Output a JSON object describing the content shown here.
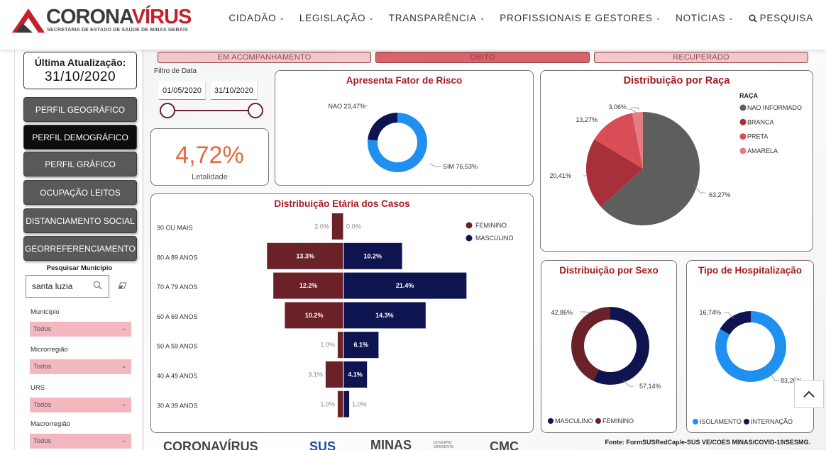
{
  "header": {
    "logo_part1": "CORONA",
    "logo_part2": "VÍRUS",
    "logo_sub": "SECRETARIA DE ESTADO DE SAÚDE DE MINAS GERAIS",
    "nav": [
      "CIDADÃO",
      "LEGISLAÇÃO",
      "TRANSPARÊNCIA",
      "PROFISSIONAIS E GESTORES",
      "NOTÍCIAS"
    ],
    "search_label": "PESQUISA"
  },
  "sidebar": {
    "update_title": "Última Atualização:",
    "update_date": "31/10/2020",
    "buttons": [
      "PERFIL GEOGRÁFICO",
      "PERFIL DEMOGRÁFICO",
      "PERFIL GRÁFICO",
      "OCUPAÇÃO LEITOS",
      "DISTANCIAMENTO SOCIAL",
      "GEORREFERENCIAMENTO"
    ],
    "active_button": "PERFIL DEMOGRÁFICO",
    "search_label": "Pesquisar Município",
    "search_value": "santa luzia",
    "filters": [
      {
        "label": "Município",
        "value": "Todos"
      },
      {
        "label": "Microrregião",
        "value": "Todos"
      },
      {
        "label": "URS",
        "value": "Todos"
      },
      {
        "label": "Macrorregião",
        "value": "Todos"
      }
    ]
  },
  "status_tabs": [
    "EM ACOMPANHAMENTO",
    "OBITO",
    "RECUPERADO"
  ],
  "date_filter": {
    "label": "Filtro de Data",
    "start": "01/05/2020",
    "end": "31/10/2020"
  },
  "kpi": {
    "value": "4,72%",
    "label": "Letalidade"
  },
  "source": "Fonte: FormSUSRedCap/e-SUS VE/COES MINAS/COVID-19/SESMG.",
  "footer": {
    "logo_left": "CORONAVÍRUS",
    "logo_sus": "SUS",
    "logo_minas": "MINAS",
    "logo_minas_sub": "GOVERNO DIFERENTE",
    "logo_cmc": "CMC"
  },
  "colors": {
    "dark_red": "#6b2128",
    "navy": "#0e1450",
    "light_blue": "#1f8ff0",
    "title_red": "#a51b22",
    "gray": "#5e5e5e",
    "red": "#a8303b",
    "pink": "#d94d57",
    "light_pink": "#e47c83"
  },
  "chart_data": [
    {
      "type": "pie",
      "variant": "donut",
      "title": "Apresenta Fator de Risco",
      "labels": [
        "SIM",
        "NAO"
      ],
      "values": [
        76.53,
        23.47
      ],
      "value_labels": [
        "SIM 76,53%",
        "NAO 23,47%"
      ]
    },
    {
      "type": "pie",
      "title": "Distribuição por Raça",
      "legend_title": "RAÇA",
      "labels": [
        "NAO INFORMADO",
        "BRANCA",
        "PRETA",
        "AMARELA"
      ],
      "values": [
        63.27,
        20.41,
        13.27,
        3.06
      ],
      "value_labels": [
        "63,27%",
        "20,41%",
        "13,27%",
        "3,06%"
      ]
    },
    {
      "type": "bar",
      "orientation": "horizontal-butterfly",
      "title": "Distribuição Etária dos Casos",
      "categories": [
        "90 OU MAIS",
        "80 A 89 ANOS",
        "70 A 79 ANOS",
        "60 A 69 ANOS",
        "50 A 59 ANOS",
        "40 A 49 ANOS",
        "30 A 39 ANOS"
      ],
      "series": [
        {
          "name": "FEMININO",
          "values": [
            2.0,
            13.3,
            12.2,
            10.2,
            1.0,
            3.1,
            1.0
          ],
          "labels": [
            "2.0%",
            "13.3%",
            "12.2%",
            "10.2%",
            "1.0%",
            "3.1%",
            "1.0%"
          ]
        },
        {
          "name": "MASCULINO",
          "values": [
            0.0,
            10.2,
            21.4,
            14.3,
            6.1,
            4.1,
            1.0
          ],
          "labels": [
            "0.0%",
            "10.2%",
            "21.4%",
            "14.3%",
            "6.1%",
            "4.1%",
            "1.0%"
          ]
        }
      ]
    },
    {
      "type": "pie",
      "variant": "donut",
      "title": "Distribuição por Sexo",
      "labels": [
        "MASCULINO",
        "FEMININO"
      ],
      "values": [
        57.14,
        42.86
      ],
      "value_labels": [
        "57,14%",
        "42,86%"
      ]
    },
    {
      "type": "pie",
      "variant": "donut",
      "title": "Tipo de Hospitalização",
      "labels": [
        "ISOLAMENTO",
        "INTERNAÇÃO"
      ],
      "values": [
        83.26,
        16.74
      ],
      "value_labels": [
        "83,26%",
        "16,74%"
      ]
    }
  ]
}
